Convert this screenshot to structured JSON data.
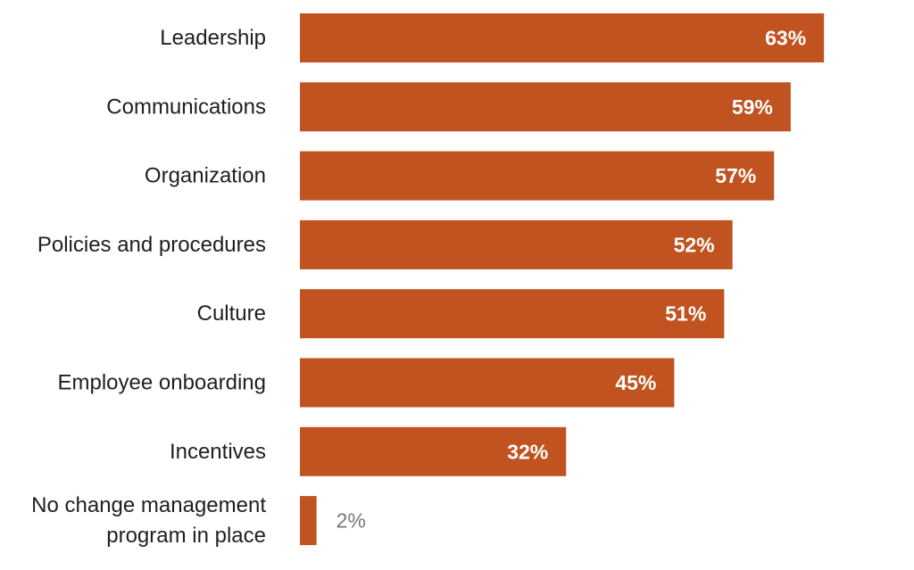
{
  "chart_data": {
    "type": "bar",
    "orientation": "horizontal",
    "categories": [
      [
        "Leadership"
      ],
      [
        "Communications"
      ],
      [
        "Organization"
      ],
      [
        "Policies and procedures"
      ],
      [
        "Culture"
      ],
      [
        "Employee onboarding"
      ],
      [
        "Incentives"
      ],
      [
        "No change management",
        "program in place"
      ]
    ],
    "values": [
      63,
      59,
      57,
      52,
      51,
      45,
      32,
      2
    ],
    "value_labels": [
      "63%",
      "59%",
      "57%",
      "52%",
      "51%",
      "45%",
      "32%",
      "2%"
    ],
    "bar_color": "#c0531f",
    "title": "",
    "xlabel": "",
    "ylabel": "",
    "grid": false,
    "legend": "none"
  }
}
